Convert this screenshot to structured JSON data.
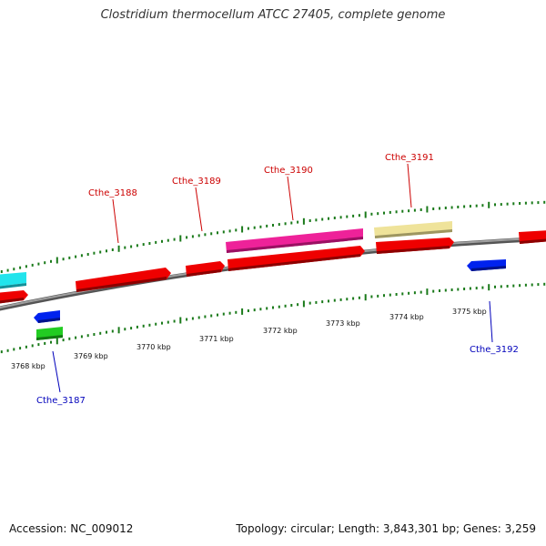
{
  "header": {
    "title": "Clostridium thermocellum ATCC 27405, complete genome"
  },
  "footer": {
    "accession": "Accession: NC_009012",
    "topology": "Topology: circular; Length: 3,843,301 bp; Genes: 3,259"
  },
  "colors": {
    "backbone": "#808080",
    "forward_label": "#cc0000",
    "reverse_label": "#0000bb",
    "tick": "#1a7a1a",
    "cds_red": "#ee0000",
    "pink": "#ee2299",
    "khaki": "#efe39a",
    "cyan": "#22e4ec",
    "blue": "#0022ee",
    "green": "#22cc22"
  },
  "map": {
    "kbp_labels": [
      "3768 kbp",
      "3769 kbp",
      "3770 kbp",
      "3771 kbp",
      "3772 kbp",
      "3773 kbp",
      "3774 kbp",
      "3775 kbp"
    ],
    "gene_labels": {
      "cthe_3187": "Cthe_3187",
      "cthe_3188": "Cthe_3188",
      "cthe_3189": "Cthe_3189",
      "cthe_3190": "Cthe_3190",
      "cthe_3191": "Cthe_3191",
      "cthe_3192": "Cthe_3192"
    }
  }
}
